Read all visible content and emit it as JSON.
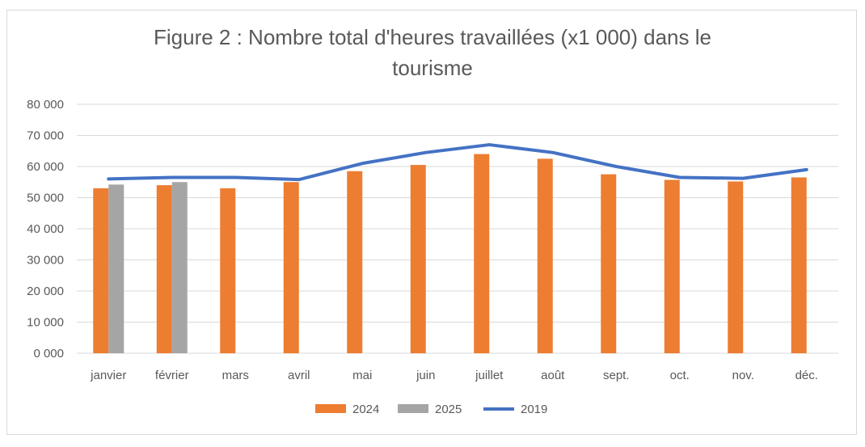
{
  "chart_data": {
    "type": "bar",
    "title_lines": [
      "Figure 2 : Nombre total d'heures travaillées (x1 000) dans le",
      "tourisme"
    ],
    "categories": [
      "janvier",
      "février",
      "mars",
      "avril",
      "mai",
      "juin",
      "juillet",
      "août",
      "sept.",
      "oct.",
      "nov.",
      "déc."
    ],
    "series": [
      {
        "name": "2024",
        "type": "bar",
        "color": "#ED7D31",
        "values": [
          53000,
          54000,
          53000,
          55000,
          58500,
          60500,
          64000,
          62500,
          57500,
          55700,
          55200,
          56500
        ]
      },
      {
        "name": "2025",
        "type": "bar",
        "color": "#A5A5A5",
        "values": [
          54200,
          55000,
          null,
          null,
          null,
          null,
          null,
          null,
          null,
          null,
          null,
          null
        ]
      },
      {
        "name": "2019",
        "type": "line",
        "color": "#4472C4",
        "values": [
          56000,
          56500,
          56500,
          55800,
          61000,
          64500,
          67000,
          64500,
          60000,
          56500,
          56200,
          59000
        ]
      }
    ],
    "ylim": [
      0,
      80000
    ],
    "yticks": [
      0,
      10000,
      20000,
      30000,
      40000,
      50000,
      60000,
      70000,
      80000
    ],
    "ytick_labels": [
      "0 000",
      "10 000",
      "20 000",
      "30 000",
      "40 000",
      "50 000",
      "60 000",
      "70 000",
      "80 000"
    ],
    "xlabel": "",
    "ylabel": "",
    "grid": true,
    "legend_position": "bottom",
    "gridline_color": "#D9D9D9"
  }
}
